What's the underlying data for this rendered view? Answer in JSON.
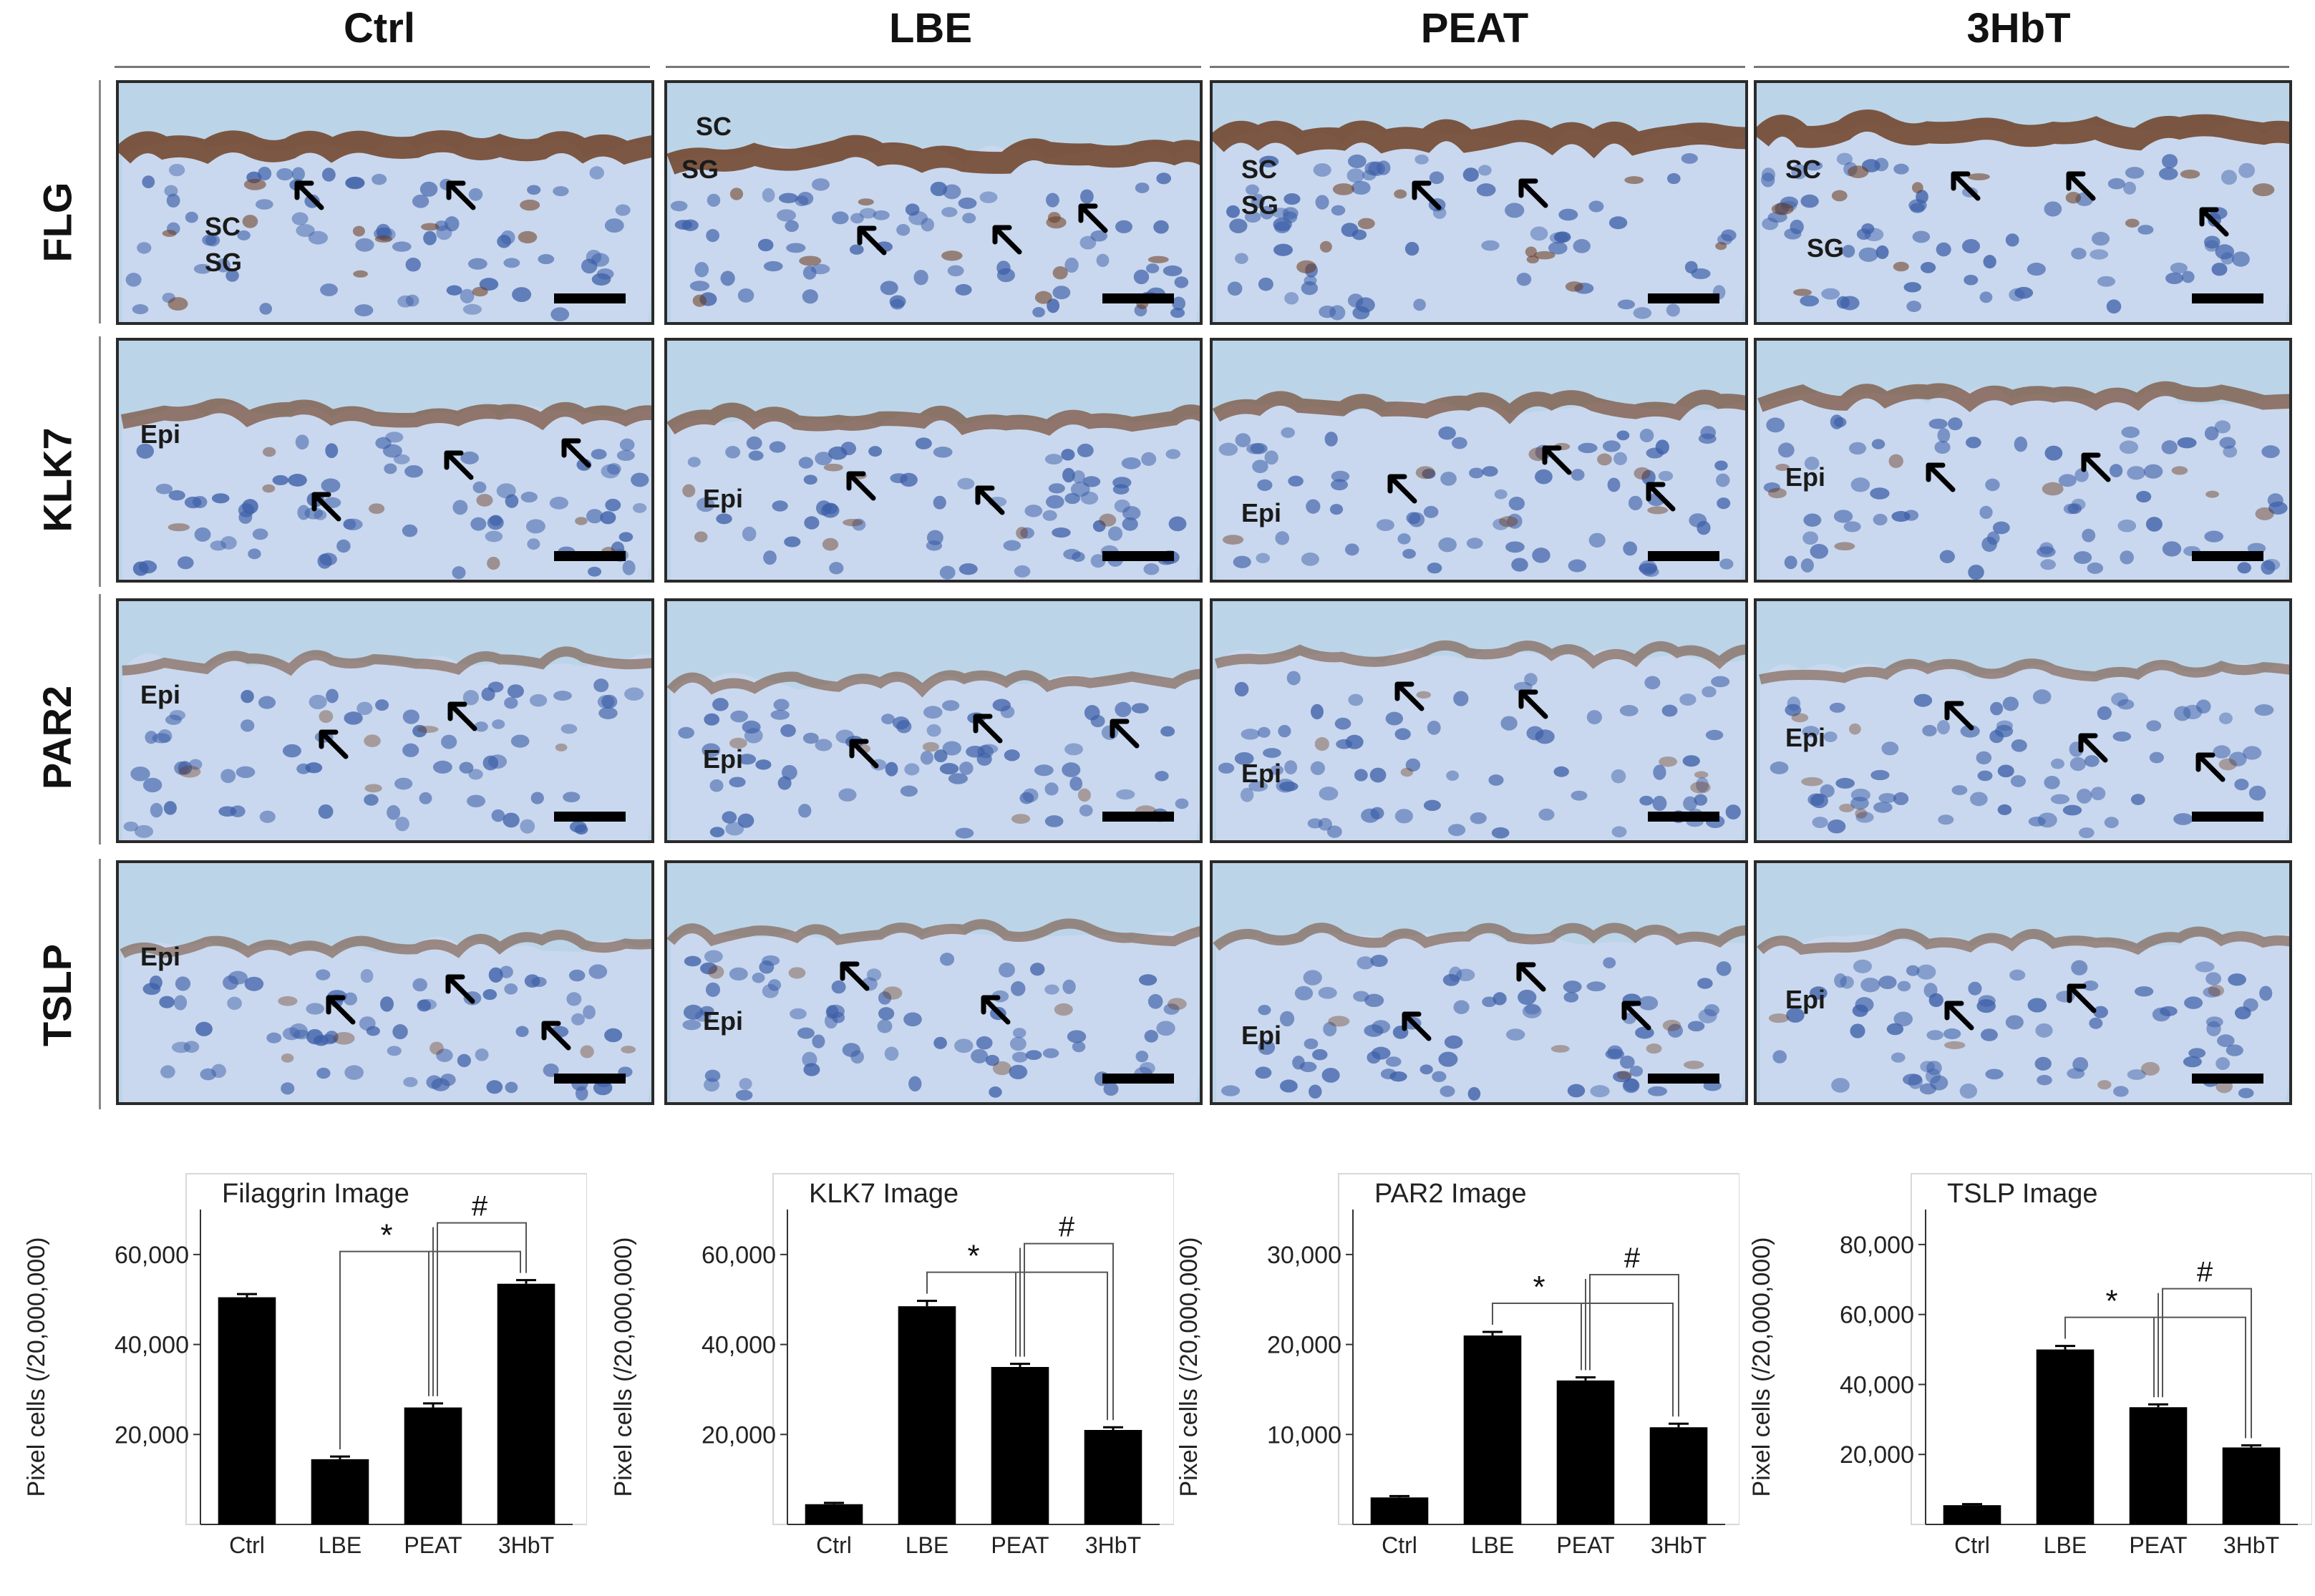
{
  "columns": [
    "Ctrl",
    "LBE",
    "PEAT",
    "3HbT"
  ],
  "rows": [
    {
      "marker": "FLG",
      "labels": [
        [
          "SC",
          "SG"
        ],
        [
          "SC",
          "SG"
        ],
        [
          "SC",
          "SG"
        ],
        [
          "SC",
          "SG"
        ]
      ],
      "stain": "strong"
    },
    {
      "marker": "KLK7",
      "labels": [
        [
          "Epi"
        ],
        [
          "Epi"
        ],
        [
          "Epi"
        ],
        [
          "Epi"
        ]
      ],
      "stain": "medium"
    },
    {
      "marker": "PAR2",
      "labels": [
        [
          "Epi"
        ],
        [
          "Epi"
        ],
        [
          "Epi"
        ],
        [
          "Epi"
        ]
      ],
      "stain": "light"
    },
    {
      "marker": "TSLP",
      "labels": [
        [
          "Epi"
        ],
        [
          "Epi"
        ],
        [
          "Epi"
        ],
        [
          "Epi"
        ]
      ],
      "stain": "light"
    }
  ],
  "colors": {
    "tissue_background": "#bcd4e8",
    "stain_brown": "#6b3a1c",
    "nucleus_blue": "#3d5fa8",
    "bar": "#000000"
  },
  "chart_data": [
    {
      "type": "bar",
      "title": "Filaggrin Image",
      "ylabel": "Pixel cells (/20,000,000)",
      "categories": [
        "Ctrl",
        "LBE",
        "PEAT",
        "3HbT"
      ],
      "values": [
        50500,
        14500,
        26000,
        53500
      ],
      "errors": [
        700,
        600,
        900,
        800
      ],
      "ylim": [
        0,
        70000
      ],
      "yticks": [
        20000,
        40000,
        60000
      ],
      "ytick_labels": [
        "20,000",
        "40,000",
        "60,000"
      ],
      "significance": [
        "*",
        "#"
      ]
    },
    {
      "type": "bar",
      "title": "KLK7 Image",
      "ylabel": "Pixel cells (/20,000,000)",
      "categories": [
        "Ctrl",
        "LBE",
        "PEAT",
        "3HbT"
      ],
      "values": [
        4500,
        48500,
        35000,
        21000
      ],
      "errors": [
        300,
        1200,
        700,
        600
      ],
      "ylim": [
        0,
        70000
      ],
      "yticks": [
        20000,
        40000,
        60000
      ],
      "ytick_labels": [
        "20,000",
        "40,000",
        "60,000"
      ],
      "significance": [
        "*",
        "#"
      ]
    },
    {
      "type": "bar",
      "title": "PAR2 Image",
      "ylabel": "Pixel cells (/20,000,000)",
      "categories": [
        "Ctrl",
        "LBE",
        "PEAT",
        "3HbT"
      ],
      "values": [
        3000,
        21000,
        16000,
        10800
      ],
      "errors": [
        150,
        400,
        350,
        400
      ],
      "ylim": [
        0,
        35000
      ],
      "yticks": [
        10000,
        20000,
        30000
      ],
      "ytick_labels": [
        "10,000",
        "20,000",
        "30,000"
      ],
      "significance": [
        "*",
        "#"
      ]
    },
    {
      "type": "bar",
      "title": "TSLP Image",
      "ylabel": "Pixel cells (/20,000,000)",
      "categories": [
        "Ctrl",
        "LBE",
        "PEAT",
        "3HbT"
      ],
      "values": [
        5500,
        50000,
        33500,
        22000
      ],
      "errors": [
        300,
        1000,
        800,
        600
      ],
      "ylim": [
        0,
        90000
      ],
      "yticks": [
        20000,
        40000,
        60000,
        80000
      ],
      "ytick_labels": [
        "20,000",
        "40,000",
        "60,000",
        "80,000"
      ],
      "significance": [
        "*",
        "#"
      ]
    }
  ]
}
